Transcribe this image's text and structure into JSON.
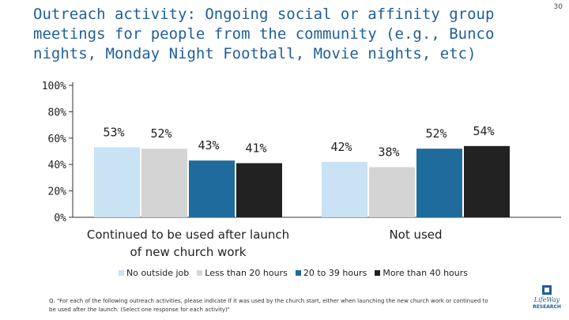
{
  "header": {
    "title": "Outreach activity: Ongoing social or affinity group meetings for people from the community (e.g., Bunco nights, Monday Night Football, Movie nights, etc)",
    "slide_number": "30"
  },
  "chart_data": {
    "type": "bar",
    "title": "Outreach activity: Ongoing social or affinity group meetings for people from the community (e.g., Bunco nights, Monday Night Football, Movie nights, etc)",
    "categories": [
      "Continued to be used after launch of new church work",
      "Not used"
    ],
    "category_lines": [
      [
        "Continued to be used after launch",
        "of new church work"
      ],
      [
        "Not used"
      ]
    ],
    "series": [
      {
        "name": "No outside job",
        "color": "#c9e2f4",
        "values": [
          53,
          42
        ],
        "labels": [
          "53%",
          "42%"
        ]
      },
      {
        "name": "Less than 20 hours",
        "color": "#d4d4d4",
        "values": [
          52,
          38
        ],
        "labels": [
          "52%",
          "38%"
        ]
      },
      {
        "name": "20 to 39 hours",
        "color": "#1f6b9c",
        "values": [
          43,
          52
        ],
        "labels": [
          "43%",
          "52%"
        ]
      },
      {
        "name": "More than 40 hours",
        "color": "#222222",
        "values": [
          41,
          54
        ],
        "labels": [
          "41%",
          "54%"
        ]
      }
    ],
    "ylim": [
      0,
      100
    ],
    "yticks": [
      0,
      20,
      40,
      60,
      80,
      100
    ],
    "ytick_labels": [
      "0%",
      "20%",
      "40%",
      "60%",
      "80%",
      "100%"
    ],
    "xlabel": "",
    "ylabel": "",
    "grid": false,
    "legend": "bottom"
  },
  "legend": {
    "items": [
      "No outside job",
      "Less than 20 hours",
      "20 to 39 hours",
      "More than 40 hours"
    ]
  },
  "footnote": "Q. \"For each of the following outreach activities, please indicate if it was used by the church start, either when launching the new church work or continued to be used after the launch. (Select one response for each activity)\"",
  "logo": {
    "text_top": "LifeWay",
    "text_bottom": "RESEARCH"
  }
}
